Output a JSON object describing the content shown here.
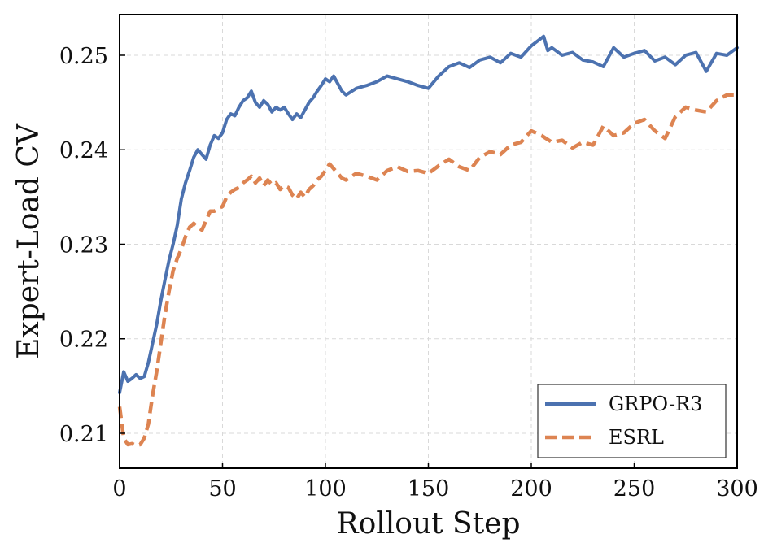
{
  "chart_data": {
    "type": "line",
    "title": "",
    "xlabel": "Rollout Step",
    "ylabel": "Expert-Load CV",
    "xlim": [
      0,
      300
    ],
    "ylim": [
      0.2063,
      0.2543
    ],
    "xticks": [
      0,
      50,
      100,
      150,
      200,
      250,
      300
    ],
    "xtick_labels": [
      "0",
      "50",
      "100",
      "150",
      "200",
      "250",
      "300"
    ],
    "yticks": [
      0.21,
      0.22,
      0.23,
      0.24,
      0.25
    ],
    "ytick_labels": [
      "0.21",
      "0.22",
      "0.23",
      "0.24",
      "0.25"
    ],
    "grid": true,
    "legend_position": "lower-right",
    "series": [
      {
        "name": "GRPO-R3",
        "color": "#4c72b0",
        "dash": "solid",
        "x": [
          0,
          2,
          4,
          6,
          8,
          10,
          12,
          14,
          16,
          18,
          20,
          22,
          24,
          26,
          28,
          30,
          32,
          34,
          36,
          38,
          40,
          42,
          44,
          46,
          48,
          50,
          52,
          54,
          56,
          58,
          60,
          62,
          64,
          66,
          68,
          70,
          72,
          74,
          76,
          78,
          80,
          82,
          84,
          86,
          88,
          90,
          92,
          94,
          96,
          98,
          100,
          102,
          104,
          106,
          108,
          110,
          115,
          120,
          125,
          130,
          135,
          140,
          145,
          150,
          155,
          160,
          165,
          170,
          175,
          180,
          185,
          190,
          195,
          200,
          203,
          206,
          208,
          210,
          215,
          220,
          225,
          230,
          235,
          240,
          245,
          250,
          255,
          260,
          265,
          270,
          275,
          280,
          285,
          290,
          295,
          300
        ],
        "y": [
          0.2143,
          0.2165,
          0.2155,
          0.2158,
          0.2162,
          0.2158,
          0.216,
          0.2175,
          0.2195,
          0.2215,
          0.224,
          0.2262,
          0.2283,
          0.23,
          0.232,
          0.2348,
          0.2365,
          0.2378,
          0.2392,
          0.24,
          0.2395,
          0.239,
          0.2405,
          0.2415,
          0.2412,
          0.2418,
          0.2432,
          0.2438,
          0.2436,
          0.2445,
          0.2452,
          0.2455,
          0.2462,
          0.245,
          0.2445,
          0.2452,
          0.2448,
          0.244,
          0.2445,
          0.2442,
          0.2445,
          0.2438,
          0.2432,
          0.2438,
          0.2434,
          0.2442,
          0.245,
          0.2455,
          0.2462,
          0.2468,
          0.2475,
          0.2472,
          0.2478,
          0.247,
          0.2462,
          0.2458,
          0.2465,
          0.2468,
          0.2472,
          0.2478,
          0.2475,
          0.2472,
          0.2468,
          0.2465,
          0.2478,
          0.2488,
          0.2492,
          0.2487,
          0.2495,
          0.2498,
          0.2492,
          0.2502,
          0.2498,
          0.251,
          0.2515,
          0.252,
          0.2505,
          0.2508,
          0.25,
          0.2503,
          0.2495,
          0.2493,
          0.2488,
          0.2508,
          0.2498,
          0.2502,
          0.2505,
          0.2494,
          0.2498,
          0.249,
          0.25,
          0.2503,
          0.2483,
          0.2502,
          0.25,
          0.2508
        ]
      },
      {
        "name": "ESRL",
        "color": "#dd8452",
        "dash": "dashed",
        "x": [
          0,
          2,
          4,
          6,
          8,
          10,
          12,
          14,
          16,
          18,
          20,
          22,
          24,
          26,
          28,
          30,
          32,
          34,
          36,
          38,
          40,
          42,
          44,
          46,
          48,
          50,
          52,
          54,
          56,
          58,
          60,
          62,
          64,
          66,
          68,
          70,
          72,
          74,
          76,
          78,
          80,
          82,
          84,
          86,
          88,
          90,
          92,
          94,
          96,
          98,
          100,
          102,
          104,
          106,
          108,
          110,
          115,
          120,
          125,
          130,
          135,
          140,
          145,
          150,
          155,
          160,
          165,
          170,
          175,
          180,
          185,
          190,
          195,
          200,
          205,
          210,
          215,
          220,
          225,
          230,
          235,
          240,
          245,
          250,
          255,
          260,
          265,
          270,
          275,
          280,
          285,
          290,
          295,
          300
        ],
        "y": [
          0.2128,
          0.2095,
          0.2088,
          0.2089,
          0.2087,
          0.2088,
          0.2095,
          0.211,
          0.214,
          0.2165,
          0.2195,
          0.2225,
          0.225,
          0.2272,
          0.2285,
          0.2295,
          0.2308,
          0.2318,
          0.2322,
          0.2318,
          0.2315,
          0.2325,
          0.2335,
          0.2335,
          0.2338,
          0.234,
          0.235,
          0.2355,
          0.2358,
          0.236,
          0.2365,
          0.2368,
          0.2372,
          0.2365,
          0.237,
          0.2362,
          0.2368,
          0.2363,
          0.2365,
          0.2358,
          0.2362,
          0.236,
          0.2352,
          0.2348,
          0.2355,
          0.235,
          0.2358,
          0.2362,
          0.2368,
          0.2372,
          0.2378,
          0.2385,
          0.238,
          0.2375,
          0.237,
          0.2368,
          0.2375,
          0.2372,
          0.2368,
          0.2378,
          0.2382,
          0.2377,
          0.2378,
          0.2375,
          0.2383,
          0.239,
          0.2382,
          0.2378,
          0.2392,
          0.2398,
          0.2395,
          0.2405,
          0.2408,
          0.242,
          0.2415,
          0.2408,
          0.241,
          0.2402,
          0.2408,
          0.2405,
          0.2425,
          0.2415,
          0.2418,
          0.2428,
          0.2432,
          0.242,
          0.2412,
          0.2435,
          0.2445,
          0.2442,
          0.244,
          0.2452,
          0.2458,
          0.2458
        ]
      }
    ]
  }
}
